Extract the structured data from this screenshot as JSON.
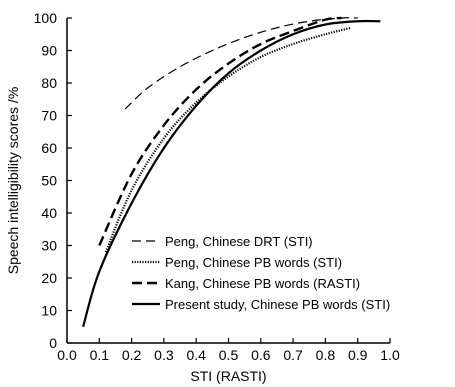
{
  "chart_data": {
    "type": "line",
    "xlabel": "STI (RASTI)",
    "ylabel": "Speech intelligibility scores /%",
    "xlim": [
      0.0,
      1.0
    ],
    "ylim": [
      0,
      100
    ],
    "xticks": [
      "0.0",
      "0.1",
      "0.2",
      "0.3",
      "0.4",
      "0.5",
      "0.6",
      "0.7",
      "0.8",
      "0.9",
      "1.0"
    ],
    "yticks": [
      "0",
      "10",
      "20",
      "30",
      "40",
      "50",
      "60",
      "70",
      "80",
      "90",
      "100"
    ],
    "grid": false,
    "legend_position": "bottom-right",
    "series": [
      {
        "name": "Peng, Chinese DRT (STI)",
        "style": "dashed-thin",
        "color": "#000000",
        "x": [
          0.18,
          0.25,
          0.35,
          0.45,
          0.55,
          0.65,
          0.75,
          0.85,
          0.9
        ],
        "y": [
          72,
          78.5,
          85,
          90,
          94,
          97,
          99,
          100,
          100
        ]
      },
      {
        "name": "Peng, Chinese PB words (STI)",
        "style": "dotted",
        "color": "#000000",
        "x": [
          0.12,
          0.2,
          0.3,
          0.4,
          0.5,
          0.6,
          0.7,
          0.8,
          0.88
        ],
        "y": [
          28,
          47,
          63,
          74,
          82,
          88,
          92,
          95,
          97
        ]
      },
      {
        "name": "Kang, Chinese PB words (RASTI)",
        "style": "dashed-thick",
        "color": "#000000",
        "x": [
          0.1,
          0.2,
          0.3,
          0.4,
          0.5,
          0.6,
          0.7,
          0.8,
          0.85
        ],
        "y": [
          30,
          52,
          67,
          78,
          86,
          92,
          96,
          99.5,
          100
        ]
      },
      {
        "name": "Present study, Chinese PB words (STI)",
        "style": "solid",
        "color": "#000000",
        "x": [
          0.05,
          0.1,
          0.2,
          0.3,
          0.4,
          0.5,
          0.6,
          0.7,
          0.8,
          0.9,
          0.97
        ],
        "y": [
          5,
          22,
          43,
          60,
          73,
          83,
          90,
          95,
          98,
          99,
          99
        ]
      }
    ]
  }
}
